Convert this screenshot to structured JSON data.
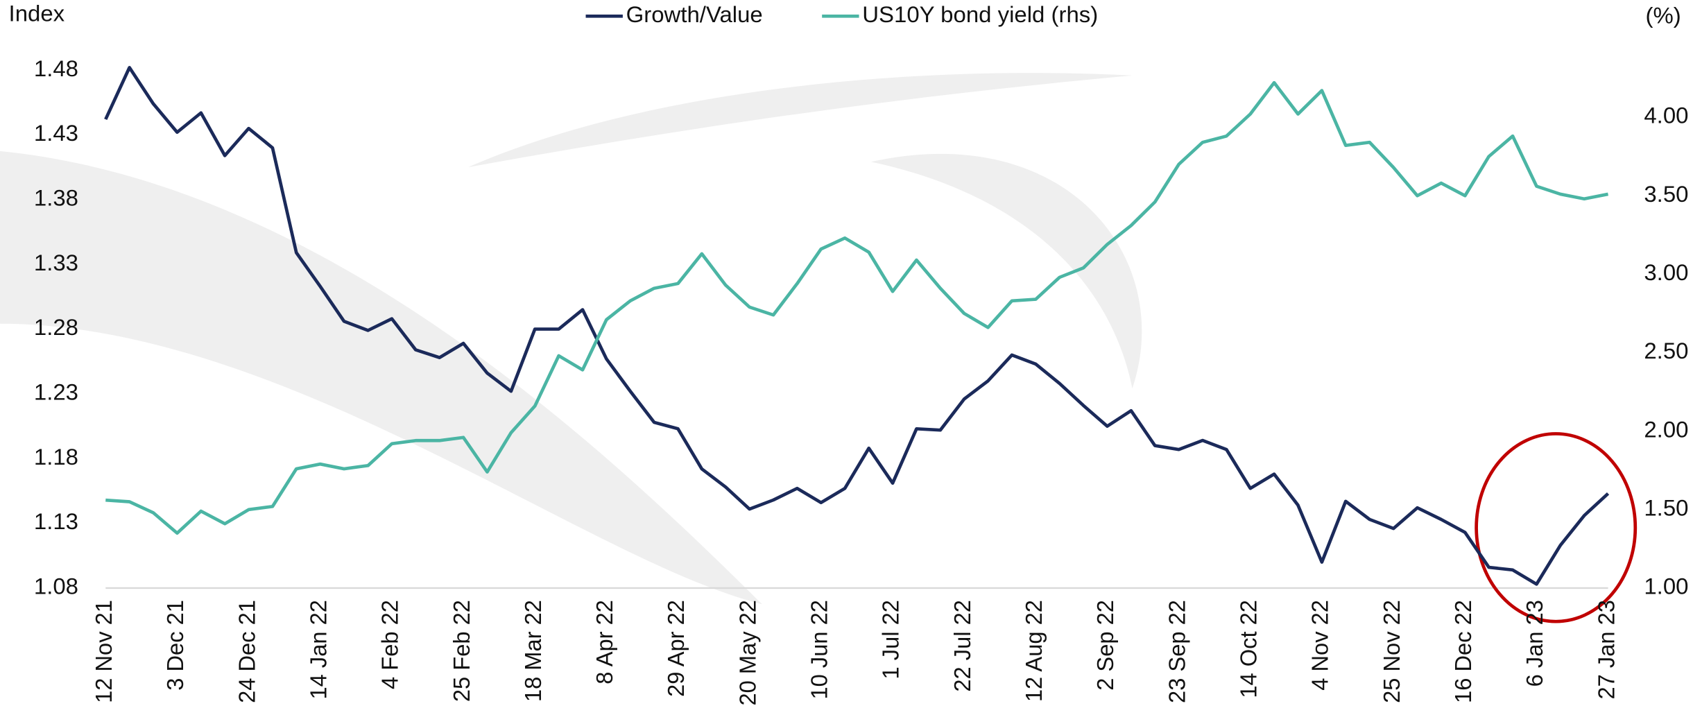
{
  "chart_data": {
    "type": "line",
    "y_label": "Index",
    "y2_label": "(%)",
    "categories": [
      "12 Nov 21",
      null,
      null,
      "3 Dec 21",
      null,
      null,
      "24 Dec 21",
      null,
      null,
      "14 Jan 22",
      null,
      null,
      "4 Feb 22",
      null,
      null,
      "25 Feb 22",
      null,
      null,
      "18 Mar 22",
      null,
      null,
      "8 Apr 22",
      null,
      null,
      "29 Apr 22",
      null,
      null,
      "20 May 22",
      null,
      null,
      "10 Jun 22",
      null,
      null,
      "1 Jul 22",
      null,
      null,
      "22 Jul 22",
      null,
      null,
      "12 Aug 22",
      null,
      null,
      "2 Sep 22",
      null,
      null,
      "23 Sep 22",
      null,
      null,
      "14 Oct 22",
      null,
      null,
      "4 Nov 22",
      null,
      null,
      "25 Nov 22",
      null,
      null,
      "16 Dec 22",
      null,
      null,
      "6 Jan 23",
      null,
      null,
      "27 Jan 23"
    ],
    "series": [
      {
        "name": "Growth/Value",
        "color": "#1b2a5a",
        "values": [
          1.442,
          1.482,
          1.454,
          1.432,
          1.447,
          1.414,
          1.435,
          1.42,
          1.339,
          1.313,
          1.286,
          1.279,
          1.288,
          1.264,
          1.258,
          1.269,
          1.246,
          1.232,
          1.28,
          1.28,
          1.295,
          1.257,
          1.232,
          1.208,
          1.203,
          1.172,
          1.158,
          1.141,
          1.148,
          1.157,
          1.146,
          1.157,
          1.188,
          1.161,
          1.203,
          1.202,
          1.226,
          1.24,
          1.26,
          1.253,
          1.238,
          1.221,
          1.205,
          1.217,
          1.19,
          1.187,
          1.194,
          1.187,
          1.157,
          1.168,
          1.144,
          1.1,
          1.147,
          1.133,
          1.126,
          1.142,
          1.133,
          1.123,
          1.096,
          1.094,
          1.083,
          1.113,
          1.136,
          1.153
        ]
      },
      {
        "name": "US10Y bond yield (rhs)",
        "color": "#4bb5a4",
        "axis": "y2",
        "values": [
          1.56,
          1.55,
          1.48,
          1.35,
          1.49,
          1.41,
          1.5,
          1.52,
          1.76,
          1.79,
          1.76,
          1.78,
          1.92,
          1.94,
          1.94,
          1.96,
          1.74,
          1.99,
          2.16,
          2.48,
          2.39,
          2.71,
          2.83,
          2.91,
          2.94,
          3.13,
          2.93,
          2.79,
          2.74,
          2.94,
          3.16,
          3.23,
          3.14,
          2.89,
          3.09,
          2.91,
          2.75,
          2.66,
          2.83,
          2.84,
          2.98,
          3.04,
          3.19,
          3.31,
          3.46,
          3.7,
          3.84,
          3.88,
          4.02,
          4.22,
          4.02,
          4.17,
          3.82,
          3.84,
          3.68,
          3.5,
          3.58,
          3.5,
          3.75,
          3.88,
          3.56,
          3.51,
          3.48,
          3.51
        ]
      }
    ],
    "ylim": [
      1.08,
      1.48
    ],
    "yticks": [
      1.08,
      1.13,
      1.18,
      1.23,
      1.28,
      1.33,
      1.38,
      1.43,
      1.48
    ],
    "y2lim": [
      1.0,
      4.3
    ],
    "y2ticks": [
      {
        "value": 1,
        "label": "1.00"
      },
      {
        "value": 1.5,
        "label": "1.50"
      },
      {
        "value": 2,
        "label": "2.00"
      },
      {
        "value": 2.5,
        "label": "2.50"
      },
      {
        "value": 3,
        "label": "3.00"
      },
      {
        "value": 3.5,
        "label": "3.50"
      },
      {
        "value": 4,
        "label": "4.00"
      }
    ],
    "grid": false,
    "legend": "top"
  }
}
